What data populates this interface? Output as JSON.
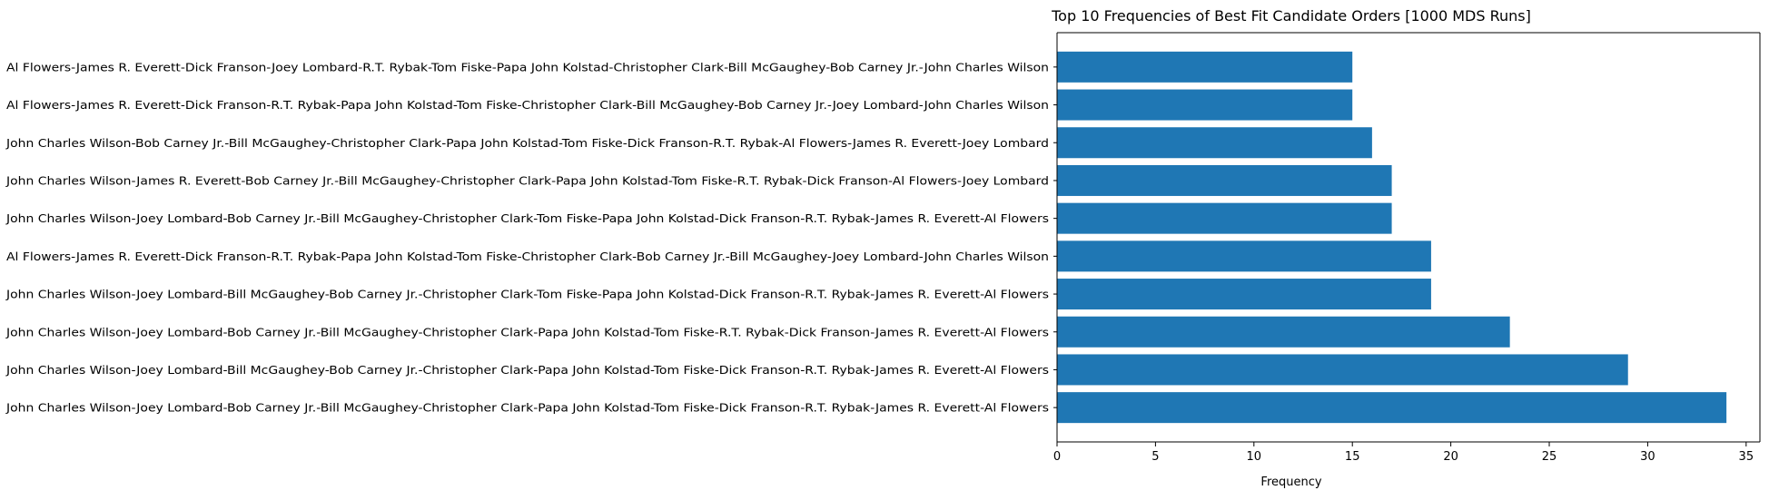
{
  "chart_data": {
    "type": "bar",
    "orientation": "horizontal",
    "title": "Top 10 Frequencies of Best Fit Candidate Orders [1000 MDS Runs]",
    "xlabel": "Frequency",
    "ylabel": "",
    "xlim": [
      0,
      35.7
    ],
    "xticks": [
      0,
      5,
      10,
      15,
      20,
      25,
      30,
      35
    ],
    "grid": false,
    "bar_color": "#1f77b4",
    "categories": [
      "John Charles Wilson-Joey Lombard-Bob Carney Jr.-Bill McGaughey-Christopher Clark-Papa John Kolstad-Tom Fiske-Dick Franson-R.T. Rybak-James R. Everett-Al Flowers",
      "John Charles Wilson-Joey Lombard-Bill McGaughey-Bob Carney Jr.-Christopher Clark-Papa John Kolstad-Tom Fiske-Dick Franson-R.T. Rybak-James R. Everett-Al Flowers",
      "John Charles Wilson-Joey Lombard-Bob Carney Jr.-Bill McGaughey-Christopher Clark-Papa John Kolstad-Tom Fiske-R.T. Rybak-Dick Franson-James R. Everett-Al Flowers",
      "John Charles Wilson-Joey Lombard-Bill McGaughey-Bob Carney Jr.-Christopher Clark-Tom Fiske-Papa John Kolstad-Dick Franson-R.T. Rybak-James R. Everett-Al Flowers",
      "Al Flowers-James R. Everett-Dick Franson-R.T. Rybak-Papa John Kolstad-Tom Fiske-Christopher Clark-Bob Carney Jr.-Bill McGaughey-Joey Lombard-John Charles Wilson",
      "John Charles Wilson-Joey Lombard-Bob Carney Jr.-Bill McGaughey-Christopher Clark-Tom Fiske-Papa John Kolstad-Dick Franson-R.T. Rybak-James R. Everett-Al Flowers",
      "John Charles Wilson-James R. Everett-Bob Carney Jr.-Bill McGaughey-Christopher Clark-Papa John Kolstad-Tom Fiske-R.T. Rybak-Dick Franson-Al Flowers-Joey Lombard",
      "John Charles Wilson-Bob Carney Jr.-Bill McGaughey-Christopher Clark-Papa John Kolstad-Tom Fiske-Dick Franson-R.T. Rybak-Al Flowers-James R. Everett-Joey Lombard",
      "Al Flowers-James R. Everett-Dick Franson-R.T. Rybak-Papa John Kolstad-Tom Fiske-Christopher Clark-Bill McGaughey-Bob Carney Jr.-Joey Lombard-John Charles Wilson",
      "Al Flowers-James R. Everett-Dick Franson-Joey Lombard-R.T. Rybak-Tom Fiske-Papa John Kolstad-Christopher Clark-Bill McGaughey-Bob Carney Jr.-John Charles Wilson"
    ],
    "values": [
      34,
      29,
      23,
      19,
      19,
      17,
      17,
      16,
      15,
      15
    ]
  }
}
